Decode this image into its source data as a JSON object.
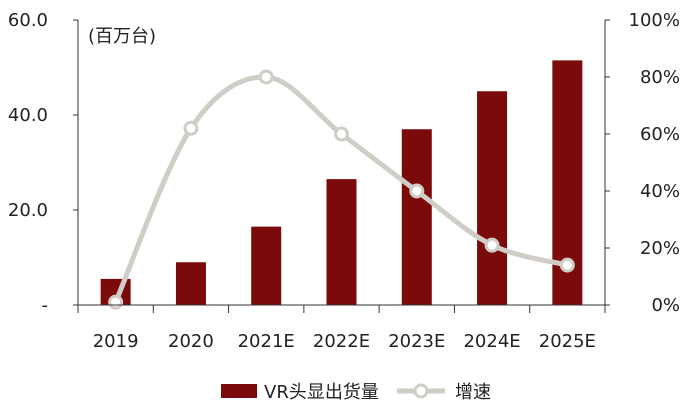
{
  "colors": {
    "bar": "#7b0a0a",
    "line": "#cfcdc6",
    "marker_fill": "#ffffff",
    "axis": "#333333",
    "text": "#222222"
  },
  "chart_data": {
    "type": "bar",
    "unit_label": "(百万台)",
    "categories": [
      "2019",
      "2020",
      "2021E",
      "2022E",
      "2023E",
      "2024E",
      "2025E"
    ],
    "series": [
      {
        "name": "VR头显出货量",
        "type": "bar",
        "axis": "left",
        "values": [
          5.5,
          9.0,
          16.5,
          26.5,
          37.0,
          45.0,
          51.5
        ]
      },
      {
        "name": "增速",
        "type": "line",
        "axis": "right",
        "values": [
          1,
          62,
          80,
          60,
          40,
          21,
          14
        ]
      }
    ],
    "left_axis": {
      "ylim": [
        0,
        60
      ],
      "ticks": [
        0,
        20,
        40,
        60
      ],
      "tick_labels": [
        "-",
        "20.0",
        "40.0",
        "60.0"
      ]
    },
    "right_axis": {
      "ylim": [
        0,
        100
      ],
      "ticks": [
        0,
        20,
        40,
        60,
        80,
        100
      ],
      "tick_labels": [
        "0%",
        "20%",
        "40%",
        "60%",
        "80%",
        "100%"
      ]
    },
    "legend": {
      "position": "bottom",
      "items": [
        "VR头显出货量",
        "增速"
      ]
    }
  }
}
